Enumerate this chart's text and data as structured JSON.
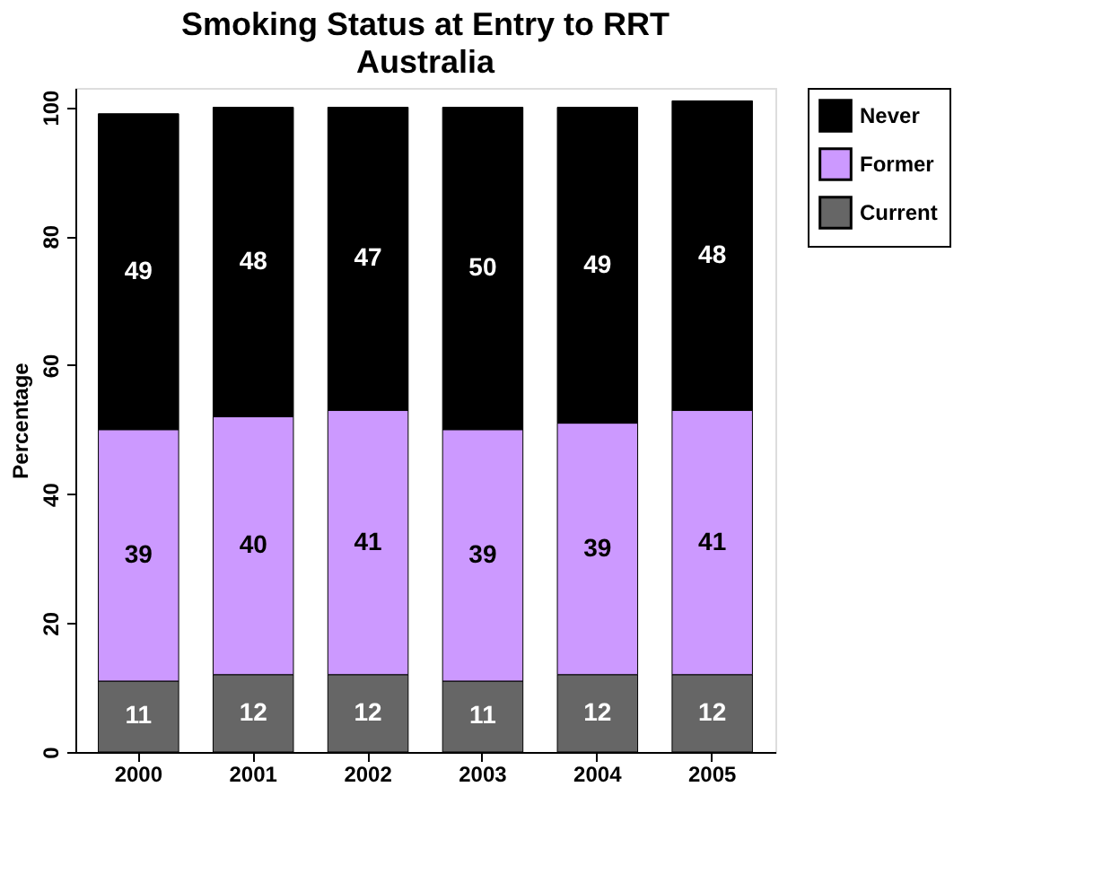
{
  "chart_data": {
    "type": "bar",
    "title": "Smoking Status at Entry to RRT",
    "subtitle": "Australia",
    "ylabel": "Percentage",
    "categories": [
      "2000",
      "2001",
      "2002",
      "2003",
      "2004",
      "2005"
    ],
    "series": [
      {
        "name": "Current",
        "color": "#666666",
        "values": [
          11,
          12,
          12,
          11,
          12,
          12
        ]
      },
      {
        "name": "Former",
        "color": "#cc99ff",
        "values": [
          39,
          40,
          41,
          39,
          39,
          41
        ]
      },
      {
        "name": "Never",
        "color": "#000000",
        "values": [
          49,
          48,
          47,
          50,
          49,
          48
        ]
      }
    ],
    "stacked": true,
    "data_labels": true,
    "ylim": [
      0,
      103
    ],
    "yticks": [
      0,
      20,
      40,
      60,
      80,
      100
    ],
    "grid": false,
    "legend": "right"
  }
}
